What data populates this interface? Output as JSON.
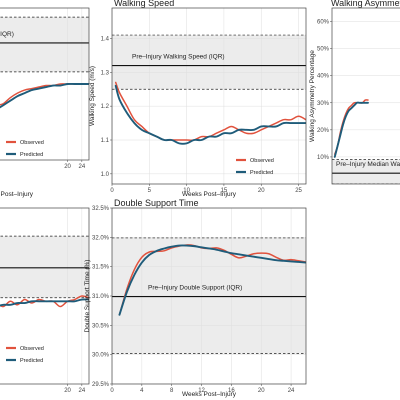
{
  "colors": {
    "observed": "#e1523d",
    "predicted": "#1f5c7a",
    "band": "#ececec",
    "grid": "#dedede",
    "panel_border": "#444444"
  },
  "chart_data": [
    {
      "id": "p1",
      "type": "line",
      "title": "",
      "xlabel": "Weeks Post–Injury",
      "ylabel": "",
      "xlim": [
        0,
        26
      ],
      "x_ticks": [
        20,
        24
      ],
      "ylim": [
        0,
        1
      ],
      "y_ticks": [],
      "band": [
        0.58,
        0.94
      ],
      "median": 0.77,
      "annotation": "(IQR)",
      "legend_position": "bottom-left",
      "series": [
        {
          "name": "Observed",
          "x": [
            0,
            2,
            4,
            6,
            8,
            10,
            12,
            14,
            16,
            18,
            20,
            22,
            24,
            26
          ],
          "y": [
            0.36,
            0.37,
            0.41,
            0.44,
            0.46,
            0.47,
            0.48,
            0.49,
            0.49,
            0.5,
            0.5,
            0.5,
            0.5,
            0.5
          ]
        },
        {
          "name": "Predicted",
          "x": [
            0,
            2,
            4,
            6,
            8,
            10,
            12,
            14,
            16,
            18,
            20,
            22,
            24,
            26
          ],
          "y": [
            0.33,
            0.36,
            0.39,
            0.42,
            0.44,
            0.46,
            0.47,
            0.48,
            0.49,
            0.49,
            0.5,
            0.5,
            0.5,
            0.5
          ]
        }
      ]
    },
    {
      "id": "p2",
      "type": "line",
      "title": "Walking Speed",
      "xlabel": "Weeks Post–Injury",
      "ylabel": "Walking Speed (m/s)",
      "xlim": [
        0,
        26
      ],
      "x_ticks": [
        0,
        5,
        10,
        15,
        20,
        25
      ],
      "ylim": [
        0.97,
        1.49
      ],
      "y_ticks": [
        1.0,
        1.1,
        1.2,
        1.3,
        1.4
      ],
      "y_tick_labels": [
        "1.0",
        "1.1",
        "1.2",
        "1.3",
        "1.4"
      ],
      "band": [
        1.25,
        1.41
      ],
      "median": 1.32,
      "annotation": "Pre–Injury Walking Speed (IQR)",
      "legend_position": "bottom-right",
      "series": [
        {
          "name": "Observed",
          "x": [
            0.5,
            1,
            2,
            3,
            4,
            5,
            6,
            7,
            8,
            9,
            10,
            11,
            12,
            13,
            14,
            15,
            16,
            17,
            18,
            19,
            20,
            21,
            22,
            23,
            24,
            25,
            26
          ],
          "y": [
            1.27,
            1.24,
            1.2,
            1.16,
            1.14,
            1.12,
            1.11,
            1.1,
            1.1,
            1.1,
            1.1,
            1.1,
            1.11,
            1.11,
            1.12,
            1.13,
            1.14,
            1.13,
            1.12,
            1.12,
            1.13,
            1.14,
            1.15,
            1.16,
            1.16,
            1.17,
            1.16
          ]
        },
        {
          "name": "Predicted",
          "x": [
            0.5,
            1,
            2,
            3,
            4,
            5,
            6,
            7,
            8,
            9,
            10,
            11,
            12,
            13,
            14,
            15,
            16,
            17,
            18,
            19,
            20,
            21,
            22,
            23,
            24,
            25,
            26
          ],
          "y": [
            1.26,
            1.22,
            1.18,
            1.15,
            1.13,
            1.12,
            1.11,
            1.1,
            1.1,
            1.09,
            1.09,
            1.1,
            1.1,
            1.11,
            1.11,
            1.12,
            1.12,
            1.13,
            1.13,
            1.13,
            1.14,
            1.14,
            1.14,
            1.15,
            1.15,
            1.15,
            1.15
          ]
        }
      ]
    },
    {
      "id": "p3",
      "type": "line",
      "title": "Walking Asymmetry",
      "xlabel": "",
      "ylabel": "Walking Asymmetry Percentage",
      "xlim": [
        0,
        26
      ],
      "x_ticks": [],
      "ylim": [
        0,
        0.65
      ],
      "y_ticks": [
        0.1,
        0.2,
        0.3,
        0.4,
        0.5,
        0.6
      ],
      "y_tick_labels": [
        "10%",
        "20%",
        "30%",
        "40%",
        "50%",
        "60%"
      ],
      "band": [
        0.0,
        0.09
      ],
      "median": 0.04,
      "annotation": "Pre–Injury Median Wa",
      "legend_position": "none",
      "series": [
        {
          "name": "Observed",
          "x": [
            1,
            2,
            3,
            4,
            5,
            6,
            7,
            8,
            9,
            10,
            11,
            12,
            13
          ],
          "y": [
            0.11,
            0.14,
            0.19,
            0.23,
            0.26,
            0.28,
            0.29,
            0.3,
            0.3,
            0.3,
            0.3,
            0.31,
            0.31
          ]
        },
        {
          "name": "Predicted",
          "x": [
            1,
            2,
            3,
            4,
            5,
            6,
            7,
            8,
            9,
            10,
            11,
            12,
            13
          ],
          "y": [
            0.1,
            0.14,
            0.18,
            0.22,
            0.25,
            0.27,
            0.28,
            0.29,
            0.3,
            0.3,
            0.3,
            0.3,
            0.3
          ]
        }
      ]
    },
    {
      "id": "p4",
      "type": "line",
      "title": "",
      "xlabel": "",
      "ylabel": "",
      "xlim": [
        0,
        26
      ],
      "x_ticks": [
        20,
        24
      ],
      "ylim": [
        0,
        1
      ],
      "y_ticks": [],
      "band": [
        0.49,
        0.84
      ],
      "median": 0.66,
      "annotation": "",
      "legend_position": "bottom-left",
      "series": [
        {
          "name": "Observed",
          "x": [
            0,
            2,
            4,
            6,
            8,
            10,
            12,
            14,
            16,
            18,
            20,
            22,
            24,
            26
          ],
          "y": [
            0.46,
            0.44,
            0.47,
            0.45,
            0.48,
            0.46,
            0.48,
            0.47,
            0.47,
            0.44,
            0.47,
            0.48,
            0.5,
            0.49
          ]
        },
        {
          "name": "Predicted",
          "x": [
            0,
            2,
            4,
            6,
            8,
            10,
            12,
            14,
            16,
            18,
            20,
            22,
            24,
            26
          ],
          "y": [
            0.44,
            0.45,
            0.45,
            0.46,
            0.46,
            0.47,
            0.47,
            0.47,
            0.47,
            0.47,
            0.47,
            0.47,
            0.48,
            0.48
          ]
        }
      ]
    },
    {
      "id": "p5",
      "type": "line",
      "title": "Double Support Time",
      "xlabel": "Weeks Post–Injury",
      "ylabel": "Double Support Time (%)",
      "xlim": [
        0,
        26
      ],
      "x_ticks": [
        0,
        4,
        8,
        12,
        16,
        20,
        24
      ],
      "ylim": [
        29.5,
        32.5
      ],
      "y_ticks": [
        29.5,
        30.0,
        30.5,
        31.0,
        31.5,
        32.0,
        32.5
      ],
      "y_tick_labels": [
        "29.5%",
        "30.0%",
        "30.5%",
        "31.0%",
        "31.5%",
        "32.0%",
        "32.5%"
      ],
      "band": [
        30.02,
        31.99
      ],
      "median": 30.99,
      "annotation": "Pre–Injury Double Support (IQR)",
      "legend_position": "none",
      "series": [
        {
          "name": "Observed",
          "x": [
            1,
            2,
            3,
            4,
            5,
            6,
            7,
            8,
            9,
            10,
            11,
            12,
            13,
            14,
            15,
            16,
            17,
            18,
            19,
            20,
            21,
            22,
            23,
            24,
            25,
            26
          ],
          "y": [
            30.68,
            31.12,
            31.45,
            31.66,
            31.75,
            31.76,
            31.77,
            31.82,
            31.85,
            31.87,
            31.86,
            31.82,
            31.81,
            31.82,
            31.78,
            31.71,
            31.65,
            31.68,
            31.72,
            31.73,
            31.72,
            31.66,
            31.61,
            31.62,
            31.6,
            31.58
          ]
        },
        {
          "name": "Predicted",
          "x": [
            1,
            2,
            3,
            4,
            5,
            6,
            7,
            8,
            9,
            10,
            11,
            12,
            13,
            14,
            15,
            16,
            17,
            18,
            19,
            20,
            21,
            22,
            23,
            24,
            25,
            26
          ],
          "y": [
            30.68,
            31.07,
            31.36,
            31.57,
            31.7,
            31.77,
            31.81,
            31.84,
            31.86,
            31.86,
            31.85,
            31.83,
            31.81,
            31.79,
            31.76,
            31.73,
            31.71,
            31.69,
            31.67,
            31.65,
            31.63,
            31.61,
            31.6,
            31.59,
            31.58,
            31.57
          ]
        }
      ]
    }
  ]
}
